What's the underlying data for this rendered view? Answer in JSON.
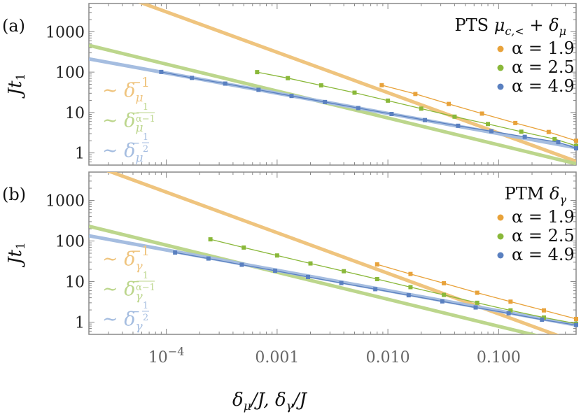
{
  "colors": {
    "orange": "#e8a23a",
    "green": "#8ab83a",
    "blue": "#5a80c0",
    "orange_fit": "#efc47e",
    "green_fit": "#bcd68c",
    "blue_fit": "#a5bde0"
  },
  "chart_data": [
    {
      "type": "line",
      "panel_label": "(a)",
      "title": "PTS μ_{c,<} + δ_μ",
      "title_text": "PTS μc,< + δμ",
      "xscale": "log",
      "yscale": "log",
      "xlim": [
        2e-05,
        0.5
      ],
      "ylim": [
        0.5,
        5000
      ],
      "ylabel": "Jt1",
      "yticks": [
        1,
        10,
        100,
        1000
      ],
      "ytick_labels": [
        "1",
        "10",
        "100",
        "1000"
      ],
      "legend_position": "top-right",
      "series": [
        {
          "name": "α = 1.9",
          "color_key": "orange",
          "x": [
            0.0088,
            0.0177,
            0.0354,
            0.0707,
            0.1414,
            0.2828,
            0.5
          ],
          "y": [
            47.5,
            28.8,
            16.3,
            9.4,
            5.5,
            3.3,
            2.0
          ]
        },
        {
          "name": "α = 2.5",
          "color_key": "green",
          "x": [
            0.00066,
            0.00125,
            0.0025,
            0.005,
            0.01,
            0.02,
            0.04,
            0.08,
            0.16,
            0.32,
            0.5
          ],
          "y": [
            100,
            71,
            47,
            31,
            19.7,
            12.5,
            7.9,
            5.2,
            3.35,
            2.2,
            1.5
          ]
        },
        {
          "name": "α = 4.9",
          "color_key": "blue",
          "x": [
            9e-05,
            0.00017,
            0.00034,
            0.00068,
            0.00135,
            0.0027,
            0.0054,
            0.0108,
            0.0216,
            0.043,
            0.086,
            0.172,
            0.345,
            0.5
          ],
          "y": [
            101,
            72,
            52,
            36.5,
            25.7,
            18.2,
            12.9,
            9.2,
            6.5,
            4.7,
            3.45,
            2.5,
            1.85,
            1.3
          ]
        }
      ],
      "fits": [
        {
          "label": "∼ δμ^{-1}",
          "base": "∼ δ",
          "sub": "μ",
          "sup": "−1",
          "color_key": "orange_fit",
          "A": 0.31,
          "p": -1
        },
        {
          "label": "∼ δμ^{-1/(α-1)}",
          "base": "∼ δ",
          "sub": "μ",
          "sup": "−",
          "frac_num": "1",
          "frac_den": "α−1",
          "color_key": "green_fit",
          "A": 0.34,
          "p": -0.6667
        },
        {
          "label": "∼ δμ^{-1/2}",
          "base": "∼ δ",
          "sub": "μ",
          "sup": "−",
          "frac_num": "1",
          "frac_den": "2",
          "color_key": "blue_fit",
          "A": 0.95,
          "p": -0.5
        }
      ]
    },
    {
      "type": "line",
      "panel_label": "(b)",
      "title": "PTM δ_γ",
      "title_text": "PTM δγ",
      "xscale": "log",
      "yscale": "log",
      "xlim": [
        2e-05,
        0.5
      ],
      "ylim": [
        0.5,
        5000
      ],
      "ylabel": "Jt1",
      "yticks": [
        1,
        10,
        100,
        1000
      ],
      "ytick_labels": [
        "1",
        "10",
        "100",
        "1000"
      ],
      "xticks": [
        0.0001,
        0.001,
        0.01,
        0.1
      ],
      "xtick_labels": [
        "10^{-4}",
        "0.001",
        "0.010",
        "0.100"
      ],
      "xlabel": "δμ/J, δγ/J",
      "legend_position": "top-right",
      "series": [
        {
          "name": "α = 1.9",
          "color_key": "orange",
          "x": [
            0.008,
            0.016,
            0.032,
            0.064,
            0.128,
            0.256,
            0.5
          ],
          "y": [
            26.5,
            15.4,
            9.1,
            5.3,
            3.2,
            1.95,
            1.2
          ]
        },
        {
          "name": "α = 2.5",
          "color_key": "green",
          "x": [
            0.00025,
            0.0005,
            0.001,
            0.002,
            0.004,
            0.008,
            0.016,
            0.032,
            0.064,
            0.128,
            0.256,
            0.5
          ],
          "y": [
            110,
            69,
            44,
            28,
            18,
            11.5,
            7.3,
            4.7,
            3.0,
            1.95,
            1.3,
            0.92
          ]
        },
        {
          "name": "α = 4.9",
          "color_key": "blue",
          "x": [
            0.00012,
            0.00024,
            0.00048,
            0.00096,
            0.0019,
            0.0038,
            0.0077,
            0.0154,
            0.031,
            0.062,
            0.123,
            0.246,
            0.5
          ],
          "y": [
            52,
            37,
            26,
            18.5,
            13,
            9.2,
            6.5,
            4.6,
            3.25,
            2.3,
            1.65,
            1.15,
            0.85
          ]
        }
      ],
      "fits": [
        {
          "label": "∼ δγ^{-1}",
          "base": "∼ δ",
          "sub": "γ",
          "sup": "−1",
          "color_key": "orange_fit",
          "A": 0.16,
          "p": -1
        },
        {
          "label": "∼ δγ^{-1/(α-1)}",
          "base": "∼ δ",
          "sub": "γ",
          "sup": "−",
          "frac_num": "1",
          "frac_den": "α−1",
          "color_key": "green_fit",
          "A": 0.17,
          "p": -0.6667
        },
        {
          "label": "∼ δγ^{-1/2}",
          "base": "∼ δ",
          "sub": "γ",
          "sup": "−",
          "frac_num": "1",
          "frac_den": "2",
          "color_key": "blue_fit",
          "A": 0.6,
          "p": -0.5
        }
      ]
    }
  ]
}
